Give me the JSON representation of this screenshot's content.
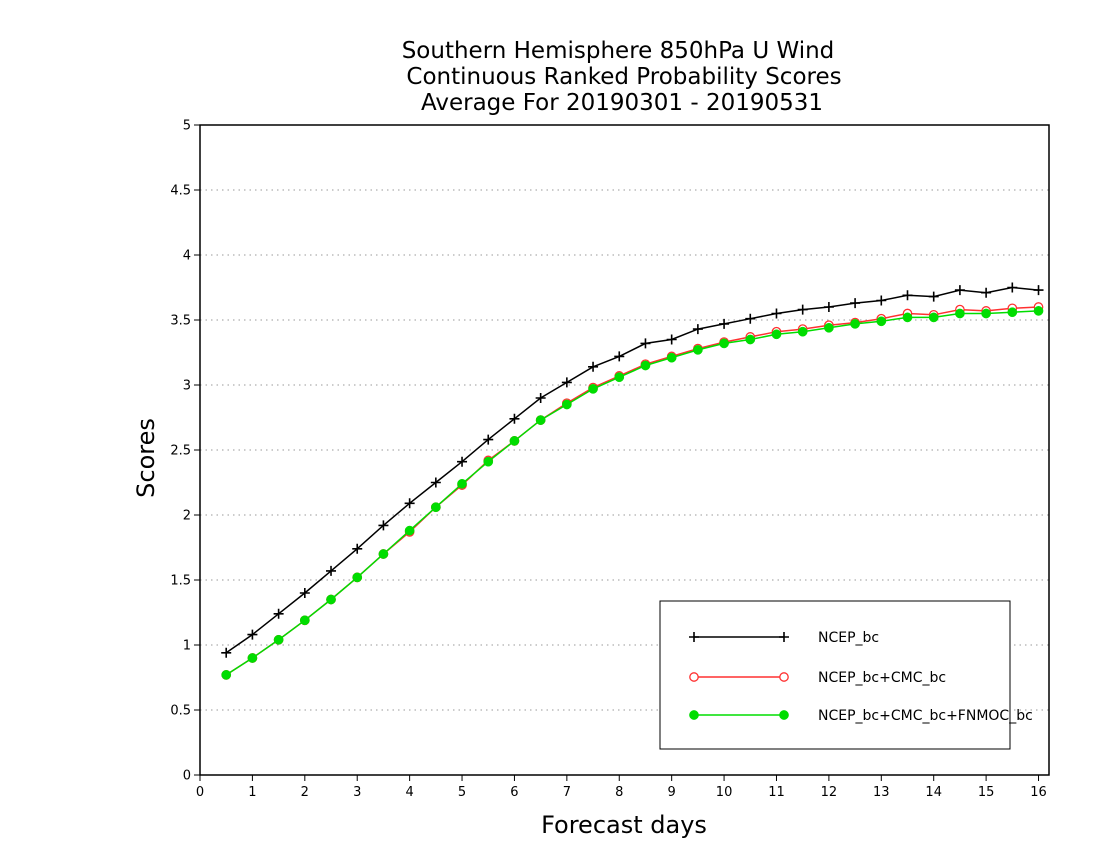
{
  "chart_data": {
    "type": "line",
    "title": [
      "Southern Hemisphere 850hPa U Wind",
      "Continuous Ranked Probability Scores",
      "Average For 20190301 - 20190531"
    ],
    "xlabel": "Forecast days",
    "ylabel": "Scores",
    "xlim": [
      0,
      16.2
    ],
    "ylim": [
      0,
      5
    ],
    "x_ticks": [
      "0",
      "1",
      "2",
      "3",
      "4",
      "5",
      "6",
      "7",
      "8",
      "9",
      "10",
      "11",
      "12",
      "13",
      "14",
      "15",
      "16"
    ],
    "y_ticks": [
      "0",
      "0.5",
      "1",
      "1.5",
      "2",
      "2.5",
      "3",
      "3.5",
      "4",
      "4.5",
      "5"
    ],
    "grid": "horizontal dotted",
    "legend_position": "bottom-right",
    "x": [
      0.5,
      1,
      1.5,
      2,
      2.5,
      3,
      3.5,
      4,
      4.5,
      5,
      5.5,
      6,
      6.5,
      7,
      7.5,
      8,
      8.5,
      9,
      9.5,
      10,
      10.5,
      11,
      11.5,
      12,
      12.5,
      13,
      13.5,
      14,
      14.5,
      15,
      15.5,
      16
    ],
    "series": [
      {
        "name": "NCEP_bc",
        "color": "#000000",
        "marker": "plus",
        "values": [
          0.94,
          1.08,
          1.24,
          1.4,
          1.57,
          1.74,
          1.92,
          2.09,
          2.25,
          2.41,
          2.58,
          2.74,
          2.9,
          3.02,
          3.14,
          3.22,
          3.32,
          3.35,
          3.43,
          3.47,
          3.51,
          3.55,
          3.58,
          3.6,
          3.63,
          3.65,
          3.69,
          3.68,
          3.73,
          3.71,
          3.75,
          3.73
        ]
      },
      {
        "name": "NCEP_bc+CMC_bc",
        "color": "#ff3030",
        "marker": "open-circle",
        "values": [
          0.77,
          0.9,
          1.04,
          1.19,
          1.35,
          1.52,
          1.7,
          1.87,
          2.06,
          2.23,
          2.42,
          2.57,
          2.73,
          2.86,
          2.98,
          3.07,
          3.16,
          3.22,
          3.28,
          3.33,
          3.37,
          3.41,
          3.43,
          3.46,
          3.48,
          3.51,
          3.55,
          3.54,
          3.58,
          3.57,
          3.59,
          3.6
        ]
      },
      {
        "name": "NCEP_bc+CMC_bc+FNMOC_bc",
        "color": "#00dd00",
        "marker": "filled-circle",
        "values": [
          0.77,
          0.9,
          1.04,
          1.19,
          1.35,
          1.52,
          1.7,
          1.88,
          2.06,
          2.24,
          2.41,
          2.57,
          2.73,
          2.85,
          2.97,
          3.06,
          3.15,
          3.21,
          3.27,
          3.32,
          3.35,
          3.39,
          3.41,
          3.44,
          3.47,
          3.49,
          3.52,
          3.52,
          3.55,
          3.55,
          3.56,
          3.57
        ]
      }
    ]
  }
}
